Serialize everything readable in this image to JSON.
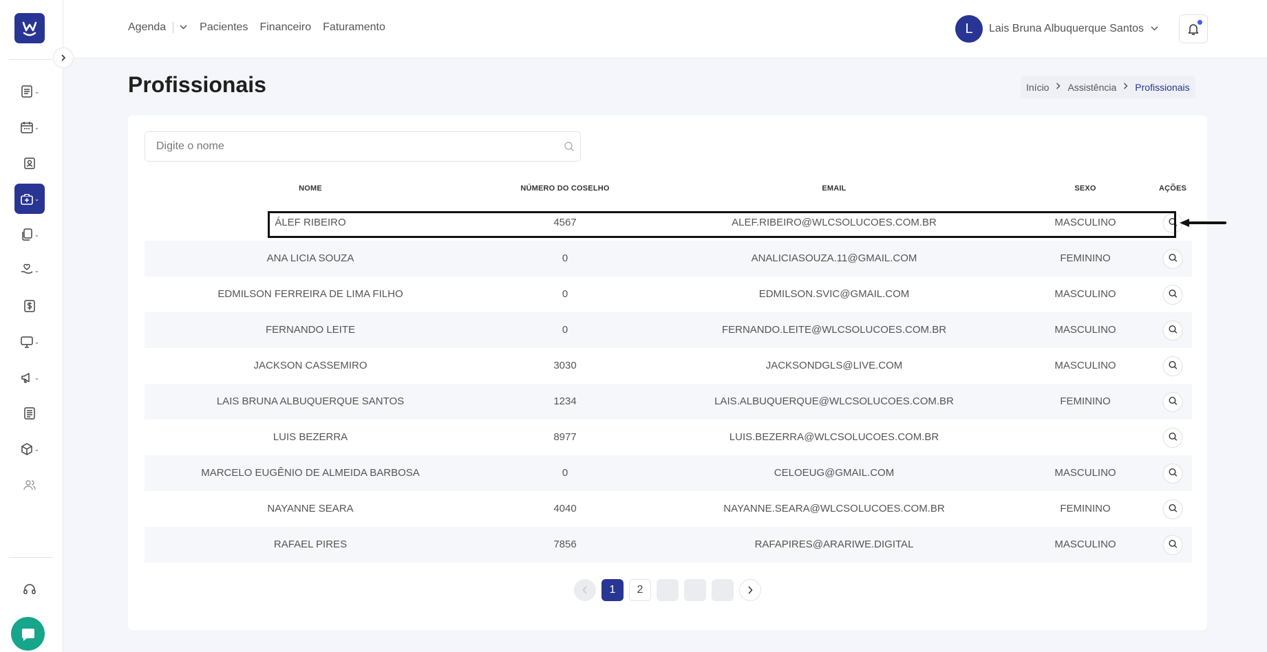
{
  "nav": {
    "items": [
      "Agenda",
      "Pacientes",
      "Financeiro",
      "Faturamento"
    ]
  },
  "user": {
    "initial": "L",
    "name": "Lais Bruna Albuquerque Santos"
  },
  "page": {
    "title": "Profissionais",
    "breadcrumb": [
      "Início",
      "Assistência",
      "Profissionais"
    ]
  },
  "search": {
    "placeholder": "Digite o nome",
    "value": ""
  },
  "table": {
    "columns": [
      "NOME",
      "NÚMERO DO COSELHO",
      "EMAIL",
      "SEXO",
      "AÇÕES"
    ],
    "rows": [
      {
        "nome": "ÁLEF RIBEIRO",
        "conselho": "4567",
        "email": "ALEF.RIBEIRO@WLCSOLUCOES.COM.BR",
        "sexo": "MASCULINO"
      },
      {
        "nome": "ANA LICIA SOUZA",
        "conselho": "0",
        "email": "ANALICIASOUZA.11@GMAIL.COM",
        "sexo": "FEMININO"
      },
      {
        "nome": "EDMILSON FERREIRA DE LIMA FILHO",
        "conselho": "0",
        "email": "EDMILSON.SVIC@GMAIL.COM",
        "sexo": "MASCULINO"
      },
      {
        "nome": "FERNANDO LEITE",
        "conselho": "0",
        "email": "FERNANDO.LEITE@WLCSOLUCOES.COM.BR",
        "sexo": "MASCULINO"
      },
      {
        "nome": "JACKSON CASSEMIRO",
        "conselho": "3030",
        "email": "JACKSONDGLS@LIVE.COM",
        "sexo": "MASCULINO"
      },
      {
        "nome": "LAIS BRUNA ALBUQUERQUE SANTOS",
        "conselho": "1234",
        "email": "LAIS.ALBUQUERQUE@WLCSOLUCOES.COM.BR",
        "sexo": "FEMININO"
      },
      {
        "nome": "LUIS BEZERRA",
        "conselho": "8977",
        "email": "LUIS.BEZERRA@WLCSOLUCOES.COM.BR",
        "sexo": ""
      },
      {
        "nome": "MARCELO EUGÊNIO DE ALMEIDA BARBOSA",
        "conselho": "0",
        "email": "CELOEUG@GMAIL.COM",
        "sexo": "MASCULINO"
      },
      {
        "nome": "NAYANNE SEARA",
        "conselho": "4040",
        "email": "NAYANNE.SEARA@WLCSOLUCOES.COM.BR",
        "sexo": "FEMININO"
      },
      {
        "nome": "RAFAEL PIRES",
        "conselho": "7856",
        "email": "RAFAPIRES@ARARIWE.DIGITAL",
        "sexo": "MASCULINO"
      }
    ]
  },
  "pagination": {
    "pages": [
      "1",
      "2"
    ],
    "current": "1"
  },
  "colors": {
    "primary": "#283593",
    "chat": "#17a58b",
    "notification_dot": "#3d5afe"
  }
}
